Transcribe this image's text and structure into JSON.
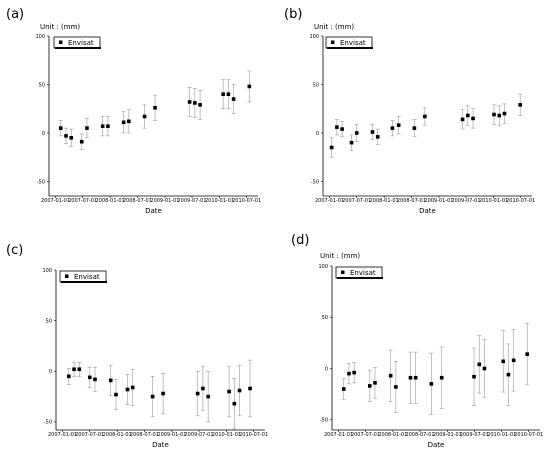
{
  "chart_data": [
    {
      "type": "scatter",
      "panel_label": "(a)",
      "unit_label": "Unit : (mm)",
      "xlabel": "Date",
      "yticks": [
        100,
        50,
        0,
        -50
      ],
      "xticks": [
        "2007-01-01",
        "2007-07-01",
        "2008-01-01",
        "2008-07-01",
        "2009-01-01",
        "2009-07-01",
        "2010-01-01",
        "2010-07-01"
      ],
      "ylim": [
        -65,
        100
      ],
      "xlim": [
        "2006-12-15",
        "2010-09-15"
      ],
      "legend": {
        "label": "Envisat",
        "placement": "top-left",
        "marker": "filled-square"
      },
      "series": [
        {
          "name": "Envisat",
          "points": [
            {
              "x": "2007-02-05",
              "y": 5,
              "err": 8
            },
            {
              "x": "2007-03-12",
              "y": -3,
              "err": 8
            },
            {
              "x": "2007-04-16",
              "y": -5,
              "err": 9
            },
            {
              "x": "2007-06-25",
              "y": -9,
              "err": 8
            },
            {
              "x": "2007-07-30",
              "y": 5,
              "err": 10
            },
            {
              "x": "2007-11-12",
              "y": 7,
              "err": 10
            },
            {
              "x": "2007-12-17",
              "y": 7,
              "err": 10
            },
            {
              "x": "2008-03-31",
              "y": 11,
              "err": 11
            },
            {
              "x": "2008-05-05",
              "y": 12,
              "err": 12
            },
            {
              "x": "2008-08-18",
              "y": 17,
              "err": 12
            },
            {
              "x": "2008-10-27",
              "y": 26,
              "err": 13
            },
            {
              "x": "2009-06-15",
              "y": 32,
              "err": 15
            },
            {
              "x": "2009-07-20",
              "y": 31,
              "err": 15
            },
            {
              "x": "2009-08-24",
              "y": 29,
              "err": 15
            },
            {
              "x": "2010-01-25",
              "y": 40,
              "err": 15
            },
            {
              "x": "2010-03-01",
              "y": 40,
              "err": 15
            },
            {
              "x": "2010-04-05",
              "y": 35,
              "err": 15
            },
            {
              "x": "2010-07-19",
              "y": 48,
              "err": 16
            }
          ]
        }
      ]
    },
    {
      "type": "scatter",
      "panel_label": "(b)",
      "unit_label": "Unit : (mm)",
      "xlabel": "Date",
      "yticks": [
        100,
        50,
        0,
        -50
      ],
      "xticks": [
        "2007-01-01",
        "2007-07-01",
        "2008-01-01",
        "2008-07-01",
        "2009-01-01",
        "2009-07-01",
        "2010-01-01",
        "2010-07-01"
      ],
      "ylim": [
        -65,
        100
      ],
      "xlim": [
        "2006-12-15",
        "2010-09-15"
      ],
      "legend": {
        "label": "Envisat",
        "placement": "top-left",
        "marker": "filled-square"
      },
      "series": [
        {
          "name": "Envisat",
          "points": [
            {
              "x": "2007-01-15",
              "y": -15,
              "err": 10
            },
            {
              "x": "2007-02-19",
              "y": 6,
              "err": 8
            },
            {
              "x": "2007-03-26",
              "y": 4,
              "err": 8
            },
            {
              "x": "2007-05-28",
              "y": -10,
              "err": 8
            },
            {
              "x": "2007-07-02",
              "y": 0,
              "err": 9
            },
            {
              "x": "2007-10-15",
              "y": 1,
              "err": 8
            },
            {
              "x": "2007-11-19",
              "y": -4,
              "err": 8
            },
            {
              "x": "2008-02-25",
              "y": 5,
              "err": 8
            },
            {
              "x": "2008-04-07",
              "y": 8,
              "err": 9
            },
            {
              "x": "2008-07-21",
              "y": 5,
              "err": 9
            },
            {
              "x": "2008-09-29",
              "y": 17,
              "err": 9
            },
            {
              "x": "2009-06-08",
              "y": 14,
              "err": 10
            },
            {
              "x": "2009-07-13",
              "y": 18,
              "err": 10
            },
            {
              "x": "2009-08-17",
              "y": 15,
              "err": 10
            },
            {
              "x": "2010-01-04",
              "y": 19,
              "err": 10
            },
            {
              "x": "2010-02-08",
              "y": 18,
              "err": 10
            },
            {
              "x": "2010-03-15",
              "y": 20,
              "err": 10
            },
            {
              "x": "2010-06-28",
              "y": 29,
              "err": 11
            }
          ]
        }
      ]
    },
    {
      "type": "scatter",
      "panel_label": "(c)",
      "unit_label": "Unit : (mm)",
      "xlabel": "Date",
      "yticks": [
        100,
        50,
        0,
        -50
      ],
      "xticks": [
        "2007-01-01",
        "2007-07-01",
        "2008-01-01",
        "2008-07-01",
        "2009-01-01",
        "2009-07-01",
        "2010-01-01",
        "2010-07-01"
      ],
      "ylim": [
        -58,
        100
      ],
      "xlim": [
        "2006-12-15",
        "2010-09-15"
      ],
      "legend": {
        "label": "Envisat",
        "placement": "top-left",
        "marker": "filled-square"
      },
      "series": [
        {
          "name": "Envisat",
          "points": [
            {
              "x": "2007-02-12",
              "y": -5,
              "err": 8
            },
            {
              "x": "2007-03-19",
              "y": 2,
              "err": 7
            },
            {
              "x": "2007-04-23",
              "y": 2,
              "err": 7
            },
            {
              "x": "2007-07-02",
              "y": -6,
              "err": 10
            },
            {
              "x": "2007-08-06",
              "y": -8,
              "err": 12
            },
            {
              "x": "2007-11-19",
              "y": -9,
              "err": 15
            },
            {
              "x": "2007-12-24",
              "y": -23,
              "err": 15
            },
            {
              "x": "2008-03-10",
              "y": -18,
              "err": 15
            },
            {
              "x": "2008-04-14",
              "y": -16,
              "err": 18
            },
            {
              "x": "2008-08-25",
              "y": -25,
              "err": 20
            },
            {
              "x": "2008-11-03",
              "y": -22,
              "err": 20
            },
            {
              "x": "2009-06-22",
              "y": -22,
              "err": 22
            },
            {
              "x": "2009-07-27",
              "y": -17,
              "err": 22
            },
            {
              "x": "2009-08-31",
              "y": -25,
              "err": 25
            },
            {
              "x": "2010-01-18",
              "y": -20,
              "err": 25
            },
            {
              "x": "2010-02-22",
              "y": -32,
              "err": 25
            },
            {
              "x": "2010-03-29",
              "y": -19,
              "err": 25
            },
            {
              "x": "2010-06-07",
              "y": -17,
              "err": 28
            }
          ]
        }
      ]
    },
    {
      "type": "scatter",
      "panel_label": "(d)",
      "unit_label": "Unit : (mm)",
      "xlabel": "Date",
      "yticks": [
        100,
        50,
        0,
        -50
      ],
      "xticks": [
        "2007-01-01",
        "2007-07-01",
        "2008-01-01",
        "2008-07-01",
        "2009-01-01",
        "2009-07-01",
        "2010-01-01",
        "2010-07-01"
      ],
      "ylim": [
        -60,
        100
      ],
      "xlim": [
        "2006-12-15",
        "2010-09-15"
      ],
      "legend": {
        "label": "Envisat",
        "placement": "top-left",
        "marker": "filled-square"
      },
      "series": [
        {
          "name": "Envisat",
          "points": [
            {
              "x": "2007-02-05",
              "y": -20,
              "err": 10
            },
            {
              "x": "2007-03-12",
              "y": -5,
              "err": 10
            },
            {
              "x": "2007-04-16",
              "y": -4,
              "err": 10
            },
            {
              "x": "2007-07-30",
              "y": -17,
              "err": 15
            },
            {
              "x": "2007-09-03",
              "y": -14,
              "err": 15
            },
            {
              "x": "2007-12-17",
              "y": -7,
              "err": 25
            },
            {
              "x": "2008-01-21",
              "y": -18,
              "err": 25
            },
            {
              "x": "2008-04-28",
              "y": -9,
              "err": 25
            },
            {
              "x": "2008-06-02",
              "y": -9,
              "err": 25
            },
            {
              "x": "2008-09-15",
              "y": -15,
              "err": 30
            },
            {
              "x": "2008-11-24",
              "y": -9,
              "err": 30
            },
            {
              "x": "2009-06-29",
              "y": -8,
              "err": 28
            },
            {
              "x": "2009-08-03",
              "y": 4,
              "err": 28
            },
            {
              "x": "2009-09-07",
              "y": 0,
              "err": 28
            },
            {
              "x": "2010-01-11",
              "y": 7,
              "err": 30
            },
            {
              "x": "2010-02-15",
              "y": -6,
              "err": 30
            },
            {
              "x": "2010-03-22",
              "y": 8,
              "err": 30
            },
            {
              "x": "2010-06-21",
              "y": 14,
              "err": 30
            }
          ]
        }
      ]
    }
  ]
}
